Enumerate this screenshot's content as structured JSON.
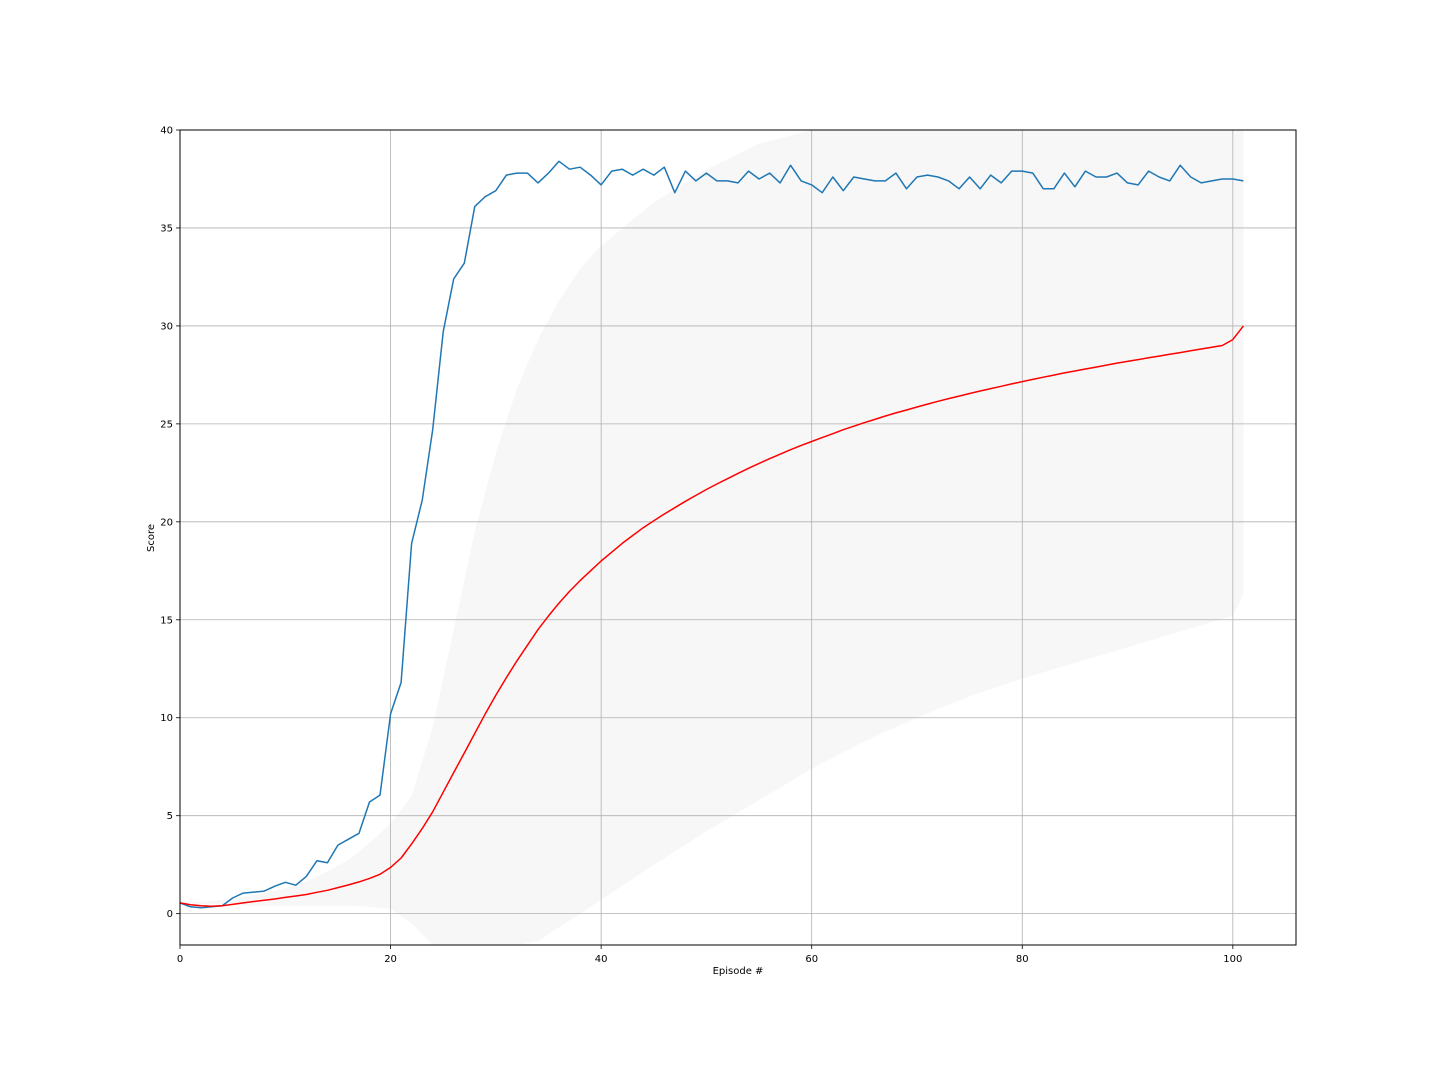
{
  "chart_data": {
    "type": "line",
    "title": "",
    "xlabel": "Episode #",
    "ylabel": "Score",
    "xlim": [
      0,
      106
    ],
    "ylim": [
      -1.6,
      40
    ],
    "grid": true,
    "x_ticks": [
      0,
      20,
      40,
      60,
      80,
      100
    ],
    "y_ticks": [
      0,
      5,
      10,
      15,
      20,
      25,
      30,
      35,
      40
    ],
    "series": [
      {
        "color": "#1f77b4",
        "x_start": 0,
        "values": [
          0.55,
          0.35,
          0.3,
          0.35,
          0.4,
          0.8,
          1.05,
          1.1,
          1.15,
          1.4,
          1.6,
          1.45,
          1.9,
          2.7,
          2.6,
          3.5,
          3.8,
          4.1,
          5.7,
          6.05,
          10.2,
          11.8,
          18.9,
          21.1,
          24.7,
          29.7,
          32.4,
          33.2,
          36.1,
          36.6,
          36.9,
          37.7,
          37.8,
          37.8,
          37.3,
          37.8,
          38.4,
          38.0,
          38.1,
          37.7,
          37.2,
          37.9,
          38.0,
          37.7,
          38.0,
          37.7,
          38.1,
          36.8,
          37.9,
          37.4,
          37.8,
          37.4,
          37.4,
          37.3,
          37.9,
          37.5,
          37.8,
          37.3,
          38.2,
          37.4,
          37.2,
          36.8,
          37.6,
          36.9,
          37.6,
          37.5,
          37.4,
          37.4,
          37.8,
          37.0,
          37.6,
          37.7,
          37.6,
          37.4,
          37.0,
          37.6,
          37.0,
          37.7,
          37.3,
          37.9,
          37.9,
          37.8,
          37.0,
          37.0,
          37.8,
          37.1,
          37.9,
          37.6,
          37.6,
          37.8,
          37.3,
          37.2,
          37.9,
          37.6,
          37.4,
          38.2,
          37.6,
          37.3,
          37.4,
          37.5,
          37.5,
          37.4
        ]
      },
      {
        "color": "#ff0000",
        "x_start": 0,
        "values": [
          0.55,
          0.45,
          0.4,
          0.38,
          0.4,
          0.47,
          0.55,
          0.62,
          0.68,
          0.75,
          0.83,
          0.9,
          0.98,
          1.09,
          1.19,
          1.33,
          1.47,
          1.62,
          1.8,
          2.01,
          2.36,
          2.84,
          3.56,
          4.34,
          5.2,
          6.2,
          7.2,
          8.2,
          9.2,
          10.2,
          11.15,
          12.05,
          12.9,
          13.7,
          14.5,
          15.2,
          15.85,
          16.45,
          17.0,
          17.5,
          18.0,
          18.45,
          18.9,
          19.3,
          19.7,
          20.05,
          20.4,
          20.72,
          21.05,
          21.35,
          21.65,
          21.93,
          22.2,
          22.47,
          22.73,
          22.98,
          23.22,
          23.45,
          23.68,
          23.9,
          24.1,
          24.3,
          24.5,
          24.7,
          24.88,
          25.06,
          25.23,
          25.4,
          25.56,
          25.71,
          25.86,
          26.01,
          26.15,
          26.29,
          26.42,
          26.55,
          26.68,
          26.8,
          26.92,
          27.04,
          27.16,
          27.27,
          27.38,
          27.49,
          27.6,
          27.7,
          27.8,
          27.9,
          28.0,
          28.1,
          28.19,
          28.28,
          28.37,
          28.46,
          28.55,
          28.64,
          28.73,
          28.82,
          28.91,
          29.0,
          29.3,
          30.0
        ]
      }
    ],
    "band": {
      "color": "#f7f7f7",
      "x": [
        0,
        2,
        4,
        6,
        8,
        10,
        12,
        14,
        16,
        18,
        20,
        22,
        24,
        26,
        28,
        30,
        32,
        34,
        36,
        38,
        40,
        45,
        50,
        55,
        60,
        65,
        70,
        75,
        80,
        85,
        90,
        95,
        100,
        101
      ],
      "upper": [
        0.55,
        0.6,
        0.7,
        0.85,
        1.05,
        1.3,
        1.65,
        2.15,
        2.75,
        3.6,
        4.6,
        6.0,
        9.5,
        14.5,
        19.5,
        23.5,
        26.8,
        29.3,
        31.3,
        32.9,
        34.1,
        36.3,
        38.0,
        39.3,
        40.0,
        40.0,
        40.0,
        40.0,
        40.0,
        40.0,
        40.0,
        40.0,
        40.0,
        40.0
      ],
      "lower": [
        0.55,
        0.5,
        0.45,
        0.42,
        0.4,
        0.4,
        0.4,
        0.4,
        0.4,
        0.35,
        0.25,
        -0.5,
        -1.6,
        -1.6,
        -1.6,
        -1.6,
        -1.6,
        -1.4,
        -0.7,
        0.0,
        0.7,
        2.5,
        4.2,
        5.8,
        7.4,
        8.8,
        10.0,
        11.1,
        12.0,
        12.8,
        13.6,
        14.4,
        15.2,
        16.3
      ]
    }
  }
}
